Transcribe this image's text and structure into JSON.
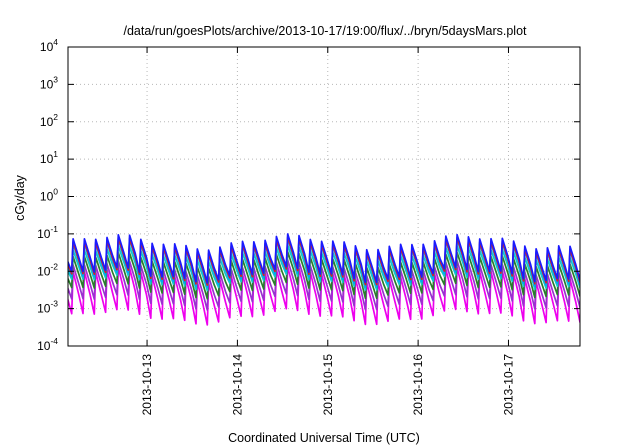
{
  "chart_data": {
    "type": "line",
    "title": "/data/run/goesPlots/archive/2013-10-17/19:00/flux/../bryn/5daysMars.plot",
    "xlabel": "Coordinated Universal Time (UTC)",
    "ylabel": "cGy/day",
    "yscale": "log",
    "ylim": [
      0.0001,
      10000
    ],
    "xlim": [
      "2013-10-12T03:00",
      "2013-10-17T19:00"
    ],
    "y_ticks": [
      {
        "value": 0.0001,
        "base": "10",
        "exp": "-4"
      },
      {
        "value": 0.001,
        "base": "10",
        "exp": "-3"
      },
      {
        "value": 0.01,
        "base": "10",
        "exp": "-2"
      },
      {
        "value": 0.1,
        "base": "10",
        "exp": "-1"
      },
      {
        "value": 1,
        "base": "10",
        "exp": "0"
      },
      {
        "value": 10,
        "base": "10",
        "exp": "1"
      },
      {
        "value": 100,
        "base": "10",
        "exp": "2"
      },
      {
        "value": 1000,
        "base": "10",
        "exp": "3"
      },
      {
        "value": 10000,
        "base": "10",
        "exp": "4"
      }
    ],
    "x_ticks": [
      "2013-10-13",
      "2013-10-14",
      "2013-10-15",
      "2013-10-16",
      "2013-10-17"
    ],
    "grid": true,
    "legend": "none",
    "sawtooth_period_hours": 3,
    "series": [
      {
        "color": "#1a1aff",
        "peak": 0.06,
        "trough": 0.008
      },
      {
        "color": "#d62020",
        "peak": 0.05,
        "trough": 0.007
      },
      {
        "color": "#00a0ff",
        "peak": 0.045,
        "trough": 0.006
      },
      {
        "color": "#12c8c8",
        "peak": 0.03,
        "trough": 0.005
      },
      {
        "color": "#2a7d2a",
        "peak": 0.02,
        "trough": 0.003
      },
      {
        "color": "#9a30d0",
        "peak": 0.012,
        "trough": 0.0015
      },
      {
        "color": "#ee00ee",
        "peak": 0.008,
        "trough": 0.0006
      }
    ]
  }
}
